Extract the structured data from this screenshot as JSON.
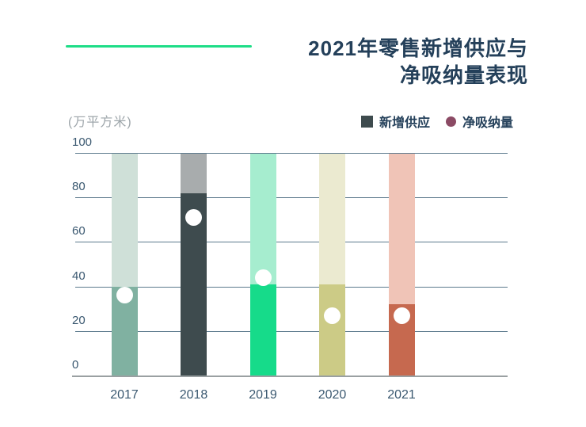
{
  "header": {
    "title_line1": "2021年零售新增供应与",
    "title_line2": "净吸纳量表现"
  },
  "axis": {
    "unit_label": "(万平方米)"
  },
  "legend": {
    "supply_label": "新增供应",
    "absorption_label": "净吸纳量"
  },
  "colors": {
    "accent_green": "#1edd87",
    "title_text": "#24405a",
    "axis_text": "#3a5870",
    "unit_text": "#9da5aa",
    "gridline": "#5d7a8d",
    "baseline": "#9aa0a2",
    "chart_dot_fill": "#ffffff",
    "legend_square": "#3e4b4e",
    "legend_dot": "#8b4a64"
  },
  "chart_data": {
    "type": "bar",
    "title": "2021年零售新增供应与净吸纳量表现",
    "ylabel": "(万平方米)",
    "xlabel": "",
    "ylim": [
      0,
      100
    ],
    "yticks": [
      0,
      20,
      40,
      60,
      80,
      100
    ],
    "grid": true,
    "legend_position": "top-right",
    "categories": [
      "2017",
      "2018",
      "2019",
      "2020",
      "2021"
    ],
    "series": [
      {
        "name": "新增供应",
        "type": "bar",
        "values": [
          40,
          82,
          41,
          41,
          32
        ]
      },
      {
        "name": "净吸纳量",
        "type": "point",
        "values": [
          36,
          71,
          44,
          27,
          27
        ]
      }
    ],
    "bar_colors": [
      "#80b1a1",
      "#3e4b4e",
      "#16db8a",
      "#cccb86",
      "#c6694f"
    ],
    "bar_background_colors": [
      "#cfe0d8",
      "#a8acad",
      "#a6edcf",
      "#ebead0",
      "#f0c4b7"
    ],
    "point_marker_color": "#ffffff"
  }
}
